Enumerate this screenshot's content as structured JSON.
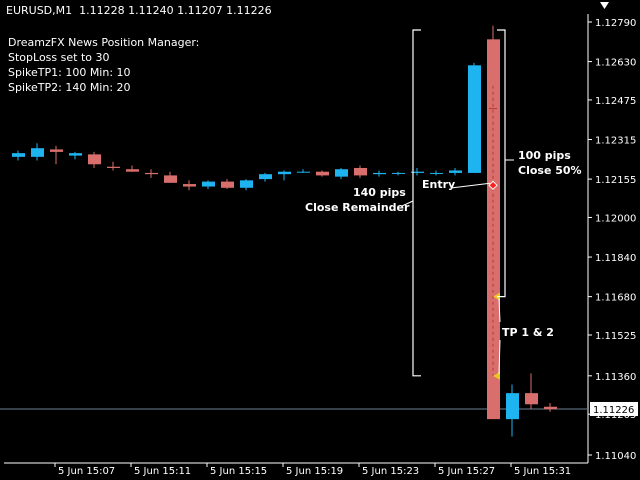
{
  "header": {
    "symbol": "EURUSD,M1",
    "ohlc": "1.11228 1.11240 1.11207 1.11226"
  },
  "info_lines": [
    "DreamzFX News Position Manager:",
    "StopLoss set to 30",
    "SpikeTP1: 100 Min: 10",
    "SpikeTP2: 140 Min: 20"
  ],
  "annotations": {
    "tp_100_line1": "100 pips",
    "tp_100_line2": "Close 50%",
    "tp_140_line1": "140 pips",
    "tp_140_line2": "Close Remainder",
    "entry": "Entry",
    "tp_1_2": "TP 1 & 2"
  },
  "icons": {
    "chart_scroll": "triangle-down-icon"
  },
  "colors": {
    "background": "#000000",
    "bull": "#1EB4F0",
    "bear": "#D96F6C",
    "axis": "#FFFFFF",
    "bracket": "#FFFFFF",
    "price_line": "#6E8294",
    "marker": "#E8C81E"
  },
  "chart_data": {
    "type": "candlestick",
    "title": "",
    "xlabel": "",
    "ylabel": "",
    "ylim": [
      1.11,
      1.1284
    ],
    "y_ticks": [
      "1.12790",
      "1.12630",
      "1.12475",
      "1.12315",
      "1.12155",
      "1.12000",
      "1.11840",
      "1.11680",
      "1.11525",
      "1.11360",
      "1.11205",
      "1.11040"
    ],
    "x_ticks": [
      "5 Jun 15:07",
      "5 Jun 15:11",
      "5 Jun 15:15",
      "5 Jun 15:19",
      "5 Jun 15:23",
      "5 Jun 15:27",
      "5 Jun 15:31"
    ],
    "current_price": "1.11226",
    "candles": [
      {
        "o": 1.12245,
        "h": 1.1227,
        "l": 1.1223,
        "c": 1.1226
      },
      {
        "o": 1.12245,
        "h": 1.123,
        "l": 1.1223,
        "c": 1.1228
      },
      {
        "o": 1.12275,
        "h": 1.1229,
        "l": 1.12215,
        "c": 1.12265
      },
      {
        "o": 1.1225,
        "h": 1.12265,
        "l": 1.12235,
        "c": 1.1226
      },
      {
        "o": 1.12255,
        "h": 1.12265,
        "l": 1.122,
        "c": 1.12215
      },
      {
        "o": 1.12205,
        "h": 1.12225,
        "l": 1.1219,
        "c": 1.122
      },
      {
        "o": 1.12195,
        "h": 1.1221,
        "l": 1.12185,
        "c": 1.12185
      },
      {
        "o": 1.1218,
        "h": 1.12195,
        "l": 1.1216,
        "c": 1.12175
      },
      {
        "o": 1.1217,
        "h": 1.12185,
        "l": 1.1214,
        "c": 1.1214
      },
      {
        "o": 1.12135,
        "h": 1.1215,
        "l": 1.1211,
        "c": 1.12125
      },
      {
        "o": 1.12125,
        "h": 1.1215,
        "l": 1.12115,
        "c": 1.12145
      },
      {
        "o": 1.12145,
        "h": 1.12155,
        "l": 1.12115,
        "c": 1.1212
      },
      {
        "o": 1.1212,
        "h": 1.12155,
        "l": 1.1211,
        "c": 1.1215
      },
      {
        "o": 1.12155,
        "h": 1.1218,
        "l": 1.12145,
        "c": 1.12175
      },
      {
        "o": 1.12175,
        "h": 1.1219,
        "l": 1.1215,
        "c": 1.12185
      },
      {
        "o": 1.12185,
        "h": 1.12195,
        "l": 1.1218,
        "c": 1.12185
      },
      {
        "o": 1.12185,
        "h": 1.1219,
        "l": 1.12165,
        "c": 1.1217
      },
      {
        "o": 1.12165,
        "h": 1.122,
        "l": 1.12155,
        "c": 1.12195
      },
      {
        "o": 1.122,
        "h": 1.1221,
        "l": 1.1216,
        "c": 1.1217
      },
      {
        "o": 1.12175,
        "h": 1.1219,
        "l": 1.12165,
        "c": 1.1218
      },
      {
        "o": 1.1218,
        "h": 1.12185,
        "l": 1.1217,
        "c": 1.1218
      },
      {
        "o": 1.1218,
        "h": 1.122,
        "l": 1.1217,
        "c": 1.12185
      },
      {
        "o": 1.1218,
        "h": 1.1219,
        "l": 1.1217,
        "c": 1.1218
      },
      {
        "o": 1.1218,
        "h": 1.122,
        "l": 1.1217,
        "c": 1.1219
      },
      {
        "o": 1.1218,
        "h": 1.12625,
        "l": 1.1218,
        "c": 1.12615
      },
      {
        "o": 1.1272,
        "h": 1.12775,
        "l": 1.11185,
        "c": 1.11185
      },
      {
        "o": 1.11185,
        "h": 1.11325,
        "l": 1.11115,
        "c": 1.1129
      },
      {
        "o": 1.1129,
        "h": 1.1137,
        "l": 1.11225,
        "c": 1.11245
      },
      {
        "o": 1.11235,
        "h": 1.1125,
        "l": 1.11215,
        "c": 1.11225
      }
    ]
  }
}
